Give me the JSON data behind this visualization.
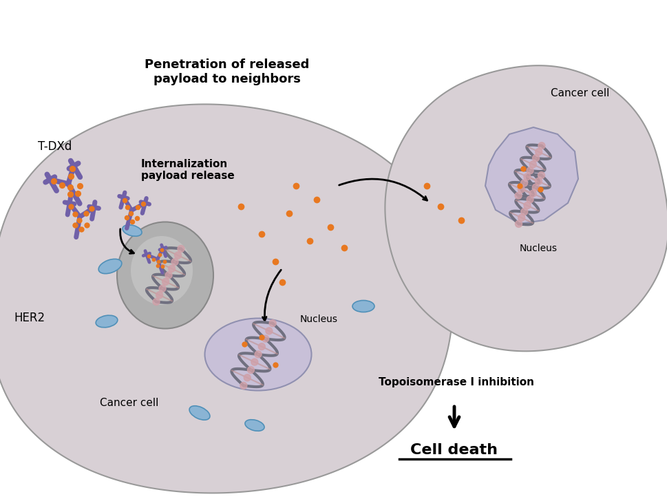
{
  "bg_color": "#ffffff",
  "cell1_color": "#d8d0d5",
  "cell2_color": "#d8d0d5",
  "nucleus_color": "#c8c0d8",
  "nucleus2_color": "#c8c0d8",
  "endosome_color": "#b8b8b8",
  "her2_color": "#a0b8d8",
  "antibody_color": "#7060a8",
  "payload_color": "#e87820",
  "dna_color": "#808090",
  "dna_pink_color": "#d0a0a8",
  "label_tdxd": "T-DXd",
  "label_her2": "HER2",
  "label_cancer_cell": "Cancer cell",
  "label_internalization": "Internalization\npayload release",
  "label_nucleus1": "Nucleus",
  "label_penetration": "Penetration of released\npayload to neighbors",
  "label_cancer_cell2": "Cancer cell",
  "label_nucleus2": "Nucleus",
  "label_topoisomerase": "Topoisomerase I inhibition",
  "label_cell_death": "Cell death",
  "title_fontsize": 13,
  "label_fontsize": 11,
  "small_fontsize": 10
}
